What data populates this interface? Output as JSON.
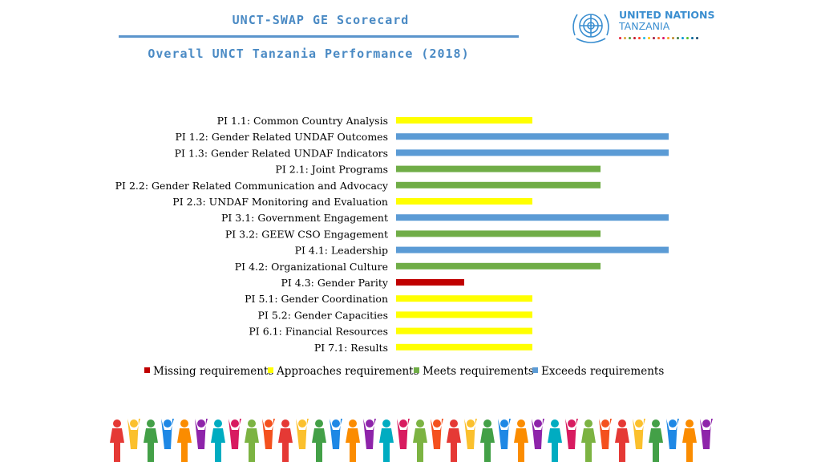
{
  "header": {
    "title": "UNCT-SWAP GE Scorecard",
    "subtitle": "Overall UNCT Tanzania Performance (2018)",
    "logo_line1": "UNITED NATIONS",
    "logo_line2": "TANZANIA"
  },
  "colors": {
    "title": "#4a8ac4",
    "missing": "#c00000",
    "approaches": "#ffff00",
    "meets": "#70ad47",
    "exceeds": "#5b9bd5"
  },
  "chart_data": {
    "type": "bar",
    "orientation": "horizontal",
    "categories": [
      "PI 1.1: Common Country Analysis",
      "PI 1.2: Gender Related UNDAF Outcomes",
      "PI 1.3: Gender Related UNDAF Indicators",
      "PI 2.1: Joint Programs",
      "PI 2.2: Gender Related Communication and Advocacy",
      "PI 2.3: UNDAF Monitoring and Evaluation",
      "PI 3.1: Government Engagement",
      "PI 3.2: GEEW CSO Engagement",
      "PI 4.1: Leadership",
      "PI 4.2: Organizational Culture",
      "PI 4.3: Gender Parity",
      "PI 5.1: Gender Coordination",
      "PI 5.2: Gender Capacities",
      "PI 6.1: Financial Resources",
      "PI 7.1: Results"
    ],
    "values": [
      2,
      4,
      4,
      3,
      3,
      2,
      4,
      3,
      4,
      3,
      1,
      2,
      2,
      2,
      2
    ],
    "levels": [
      "Missing requirements",
      "Approaches requirements",
      "Meets requirements",
      "Exceeds requirements"
    ],
    "legend": [
      {
        "label": "Missing requirements",
        "color": "#c00000"
      },
      {
        "label": "Approaches requirements",
        "color": "#ffff00"
      },
      {
        "label": "Meets requirements",
        "color": "#70ad47"
      },
      {
        "label": "Exceeds requirements",
        "color": "#5b9bd5"
      }
    ],
    "xlim": [
      0,
      4
    ],
    "legend_position": "bottom",
    "grid": false
  }
}
